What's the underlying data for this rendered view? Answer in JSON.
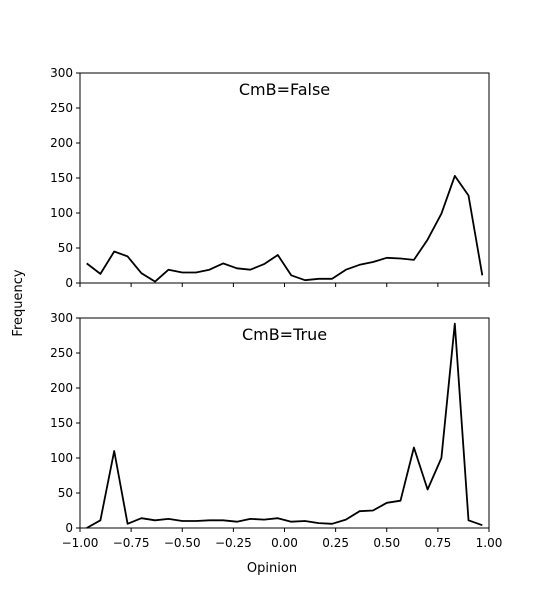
{
  "chart_data": [
    {
      "type": "line",
      "title": "CmB=False",
      "ylabel": "Frequency",
      "xlabel": "",
      "xlim": [
        -1.0,
        1.0
      ],
      "ylim": [
        0,
        300
      ],
      "yticks": [
        "0",
        "50",
        "100",
        "150",
        "200",
        "250",
        "300"
      ],
      "x": [
        -0.967,
        -0.9,
        -0.833,
        -0.767,
        -0.7,
        -0.633,
        -0.567,
        -0.5,
        -0.433,
        -0.367,
        -0.3,
        -0.233,
        -0.167,
        -0.1,
        -0.033,
        0.033,
        0.1,
        0.167,
        0.233,
        0.3,
        0.367,
        0.433,
        0.5,
        0.567,
        0.633,
        0.7,
        0.767,
        0.833,
        0.9,
        0.967
      ],
      "values": [
        28,
        13,
        45,
        38,
        14,
        2,
        19,
        15,
        15,
        19,
        28,
        21,
        19,
        27,
        40,
        11,
        4,
        6,
        6,
        19,
        26,
        30,
        36,
        35,
        33,
        62,
        99,
        153,
        125,
        11
      ],
      "color": "#000000"
    },
    {
      "type": "line",
      "title": "CmB=True",
      "ylabel": "Frequency",
      "xlabel": "Opinion",
      "xlim": [
        -1.0,
        1.0
      ],
      "ylim": [
        0,
        300
      ],
      "yticks": [
        "0",
        "50",
        "100",
        "150",
        "200",
        "250",
        "300"
      ],
      "xticks": [
        "−1.00",
        "−0.75",
        "−0.50",
        "−0.25",
        "0.00",
        "0.25",
        "0.50",
        "0.75",
        "1.00"
      ],
      "x": [
        -0.967,
        -0.9,
        -0.833,
        -0.767,
        -0.7,
        -0.633,
        -0.567,
        -0.5,
        -0.433,
        -0.367,
        -0.3,
        -0.233,
        -0.167,
        -0.1,
        -0.033,
        0.033,
        0.1,
        0.167,
        0.233,
        0.3,
        0.367,
        0.433,
        0.5,
        0.567,
        0.633,
        0.7,
        0.767,
        0.833,
        0.9,
        0.967
      ],
      "values": [
        0,
        11,
        110,
        6,
        14,
        11,
        13,
        10,
        10,
        11,
        11,
        9,
        13,
        12,
        14,
        9,
        10,
        7,
        6,
        12,
        24,
        25,
        36,
        39,
        115,
        55,
        100,
        292,
        11,
        4
      ],
      "color": "#000000"
    }
  ],
  "shared": {
    "ylabel": "Frequency",
    "xlabel": "Opinion"
  }
}
